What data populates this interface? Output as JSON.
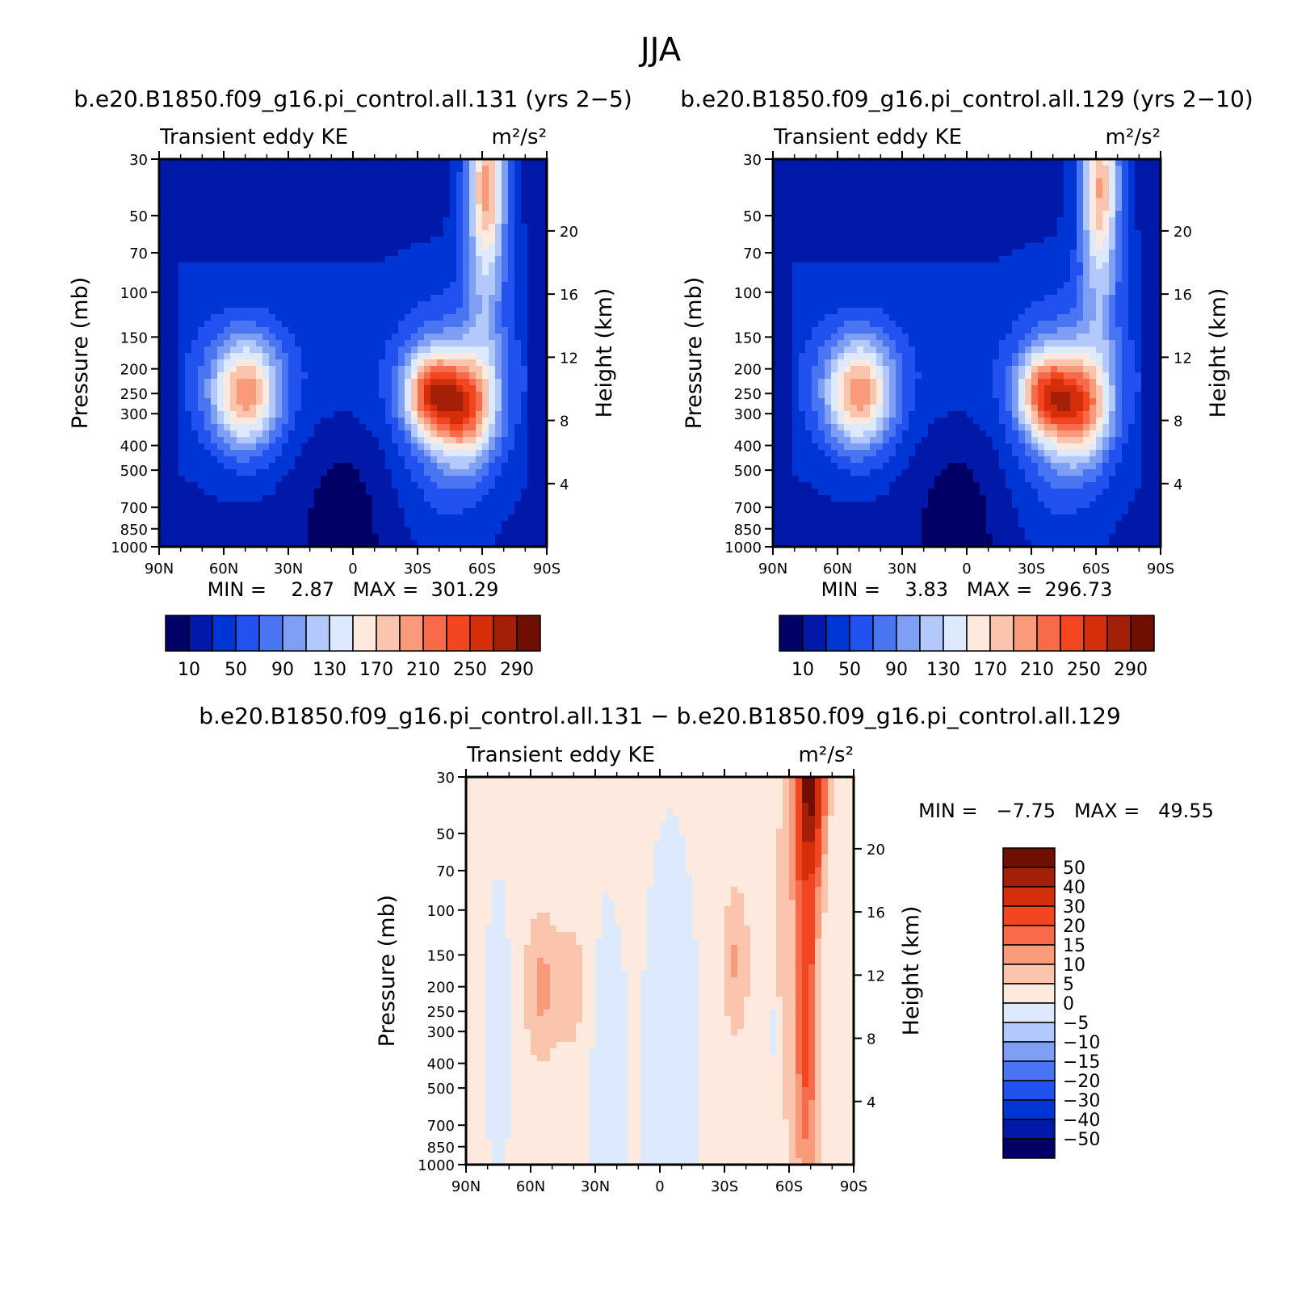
{
  "figure": {
    "title": "JJA"
  },
  "panels": [
    {
      "title": "b.e20.B1850.f09_g16.pi_control.all.131 (yrs 2−5)",
      "left_label": "Transient eddy KE",
      "right_label": "m²/s²",
      "stats": "MIN =    2.87   MAX =  301.29",
      "ylabel_left": "Pressure (mb)",
      "ylabel_right": "Height (km)"
    },
    {
      "title": "b.e20.B1850.f09_g16.pi_control.all.129 (yrs 2−10)",
      "left_label": "Transient eddy KE",
      "right_label": "m²/s²",
      "stats": "MIN =    3.83   MAX =  296.73",
      "ylabel_left": "Pressure (mb)",
      "ylabel_right": "Height (km)"
    },
    {
      "title": "b.e20.B1850.f09_g16.pi_control.all.131 − b.e20.B1850.f09_g16.pi_control.all.129",
      "left_label": "Transient eddy KE",
      "right_label": "m²/s²",
      "stats": "MIN =   −7.75   MAX =   49.55",
      "ylabel_left": "Pressure (mb)",
      "ylabel_right": "Height (km)"
    }
  ],
  "colorbars": {
    "abs": {
      "colors": [
        "#000066",
        "#0019a8",
        "#0035d5",
        "#2152f0",
        "#4a75f2",
        "#7f9ff5",
        "#b4c9fb",
        "#dde9fc",
        "#fde9dd",
        "#fbc5ad",
        "#f99a7a",
        "#f76b4a",
        "#f24520",
        "#d42e0a",
        "#a31f05",
        "#6e0f02"
      ],
      "labels": [
        "10",
        "50",
        "90",
        "130",
        "170",
        "210",
        "250",
        "290"
      ]
    },
    "diff": {
      "colors": [
        "#000066",
        "#0019a8",
        "#0035d5",
        "#2152f0",
        "#4a75f2",
        "#7f9ff5",
        "#b4c9fb",
        "#dde9fc",
        "#fde9dd",
        "#fbc5ad",
        "#f99a7a",
        "#f76b4a",
        "#f24520",
        "#d42e0a",
        "#a31f05",
        "#6e0f02"
      ],
      "labels": [
        "−50",
        "−40",
        "−30",
        "−20",
        "−15",
        "−10",
        "−5",
        "0",
        "5",
        "10",
        "15",
        "20",
        "30",
        "40",
        "50"
      ]
    }
  },
  "chart_data": [
    {
      "type": "heatmap",
      "title": "b.e20.B1850.f09_g16.pi_control.all.131 (yrs 2−5)",
      "xlabel": "",
      "ylabel": "Pressure (mb)",
      "ylabel_right": "Height (km)",
      "x_ticks": [
        "90N",
        "60N",
        "30N",
        "0",
        "30S",
        "60S",
        "90S"
      ],
      "x_tick_values": [
        90,
        60,
        30,
        0,
        -30,
        -60,
        -90
      ],
      "y_ticks": [
        30,
        50,
        70,
        100,
        150,
        200,
        250,
        300,
        400,
        500,
        700,
        850,
        1000
      ],
      "y_scale": "log",
      "y_range": [
        1000,
        30
      ],
      "right_ticks_km": [
        4,
        8,
        12,
        16,
        20
      ],
      "min": 2.87,
      "max": 301.29,
      "levels": [
        10,
        30,
        50,
        70,
        90,
        110,
        130,
        150,
        170,
        190,
        210,
        230,
        250,
        270,
        290
      ],
      "features": [
        {
          "lat": 50,
          "p": 250,
          "value": 200
        },
        {
          "lat": -35,
          "p": 250,
          "value": 301.29
        },
        {
          "lat": -52,
          "p": 280,
          "value": 270
        },
        {
          "lat": -62,
          "p": 35,
          "value": 170
        },
        {
          "lat": 5,
          "p": 950,
          "value": 2.87
        }
      ]
    },
    {
      "type": "heatmap",
      "title": "b.e20.B1850.f09_g16.pi_control.all.129 (yrs 2−10)",
      "xlabel": "",
      "ylabel": "Pressure (mb)",
      "ylabel_right": "Height (km)",
      "x_ticks": [
        "90N",
        "60N",
        "30N",
        "0",
        "30S",
        "60S",
        "90S"
      ],
      "x_tick_values": [
        90,
        60,
        30,
        0,
        -30,
        -60,
        -90
      ],
      "y_ticks": [
        30,
        50,
        70,
        100,
        150,
        200,
        250,
        300,
        400,
        500,
        700,
        850,
        1000
      ],
      "y_scale": "log",
      "y_range": [
        1000,
        30
      ],
      "right_ticks_km": [
        4,
        8,
        12,
        16,
        20
      ],
      "min": 3.83,
      "max": 296.73,
      "levels": [
        10,
        30,
        50,
        70,
        90,
        110,
        130,
        150,
        170,
        190,
        210,
        230,
        250,
        270,
        290
      ],
      "features": [
        {
          "lat": 50,
          "p": 250,
          "value": 195
        },
        {
          "lat": -33,
          "p": 250,
          "value": 296.73
        },
        {
          "lat": -50,
          "p": 280,
          "value": 260
        },
        {
          "lat": -60,
          "p": 35,
          "value": 150
        },
        {
          "lat": 5,
          "p": 950,
          "value": 3.83
        }
      ]
    },
    {
      "type": "heatmap",
      "title": "b.e20.B1850.f09_g16.pi_control.all.131 − b.e20.B1850.f09_g16.pi_control.all.129",
      "xlabel": "",
      "ylabel": "Pressure (mb)",
      "ylabel_right": "Height (km)",
      "x_ticks": [
        "90N",
        "60N",
        "30N",
        "0",
        "30S",
        "60S",
        "90S"
      ],
      "x_tick_values": [
        90,
        60,
        30,
        0,
        -30,
        -60,
        -90
      ],
      "y_ticks": [
        30,
        50,
        70,
        100,
        150,
        200,
        250,
        300,
        400,
        500,
        700,
        850,
        1000
      ],
      "y_scale": "log",
      "y_range": [
        1000,
        30
      ],
      "right_ticks_km": [
        4,
        8,
        12,
        16,
        20
      ],
      "min": -7.75,
      "max": 49.55,
      "levels": [
        -50,
        -40,
        -30,
        -20,
        -15,
        -10,
        -5,
        0,
        5,
        10,
        15,
        20,
        30,
        40,
        50
      ],
      "features": [
        {
          "lat": -70,
          "p": 35,
          "value": 49.55
        },
        {
          "lat": -68,
          "p": 250,
          "value": 20
        },
        {
          "lat": 55,
          "p": 200,
          "value": 12
        },
        {
          "lat": -53,
          "p": 300,
          "value": -7.75
        }
      ]
    }
  ]
}
